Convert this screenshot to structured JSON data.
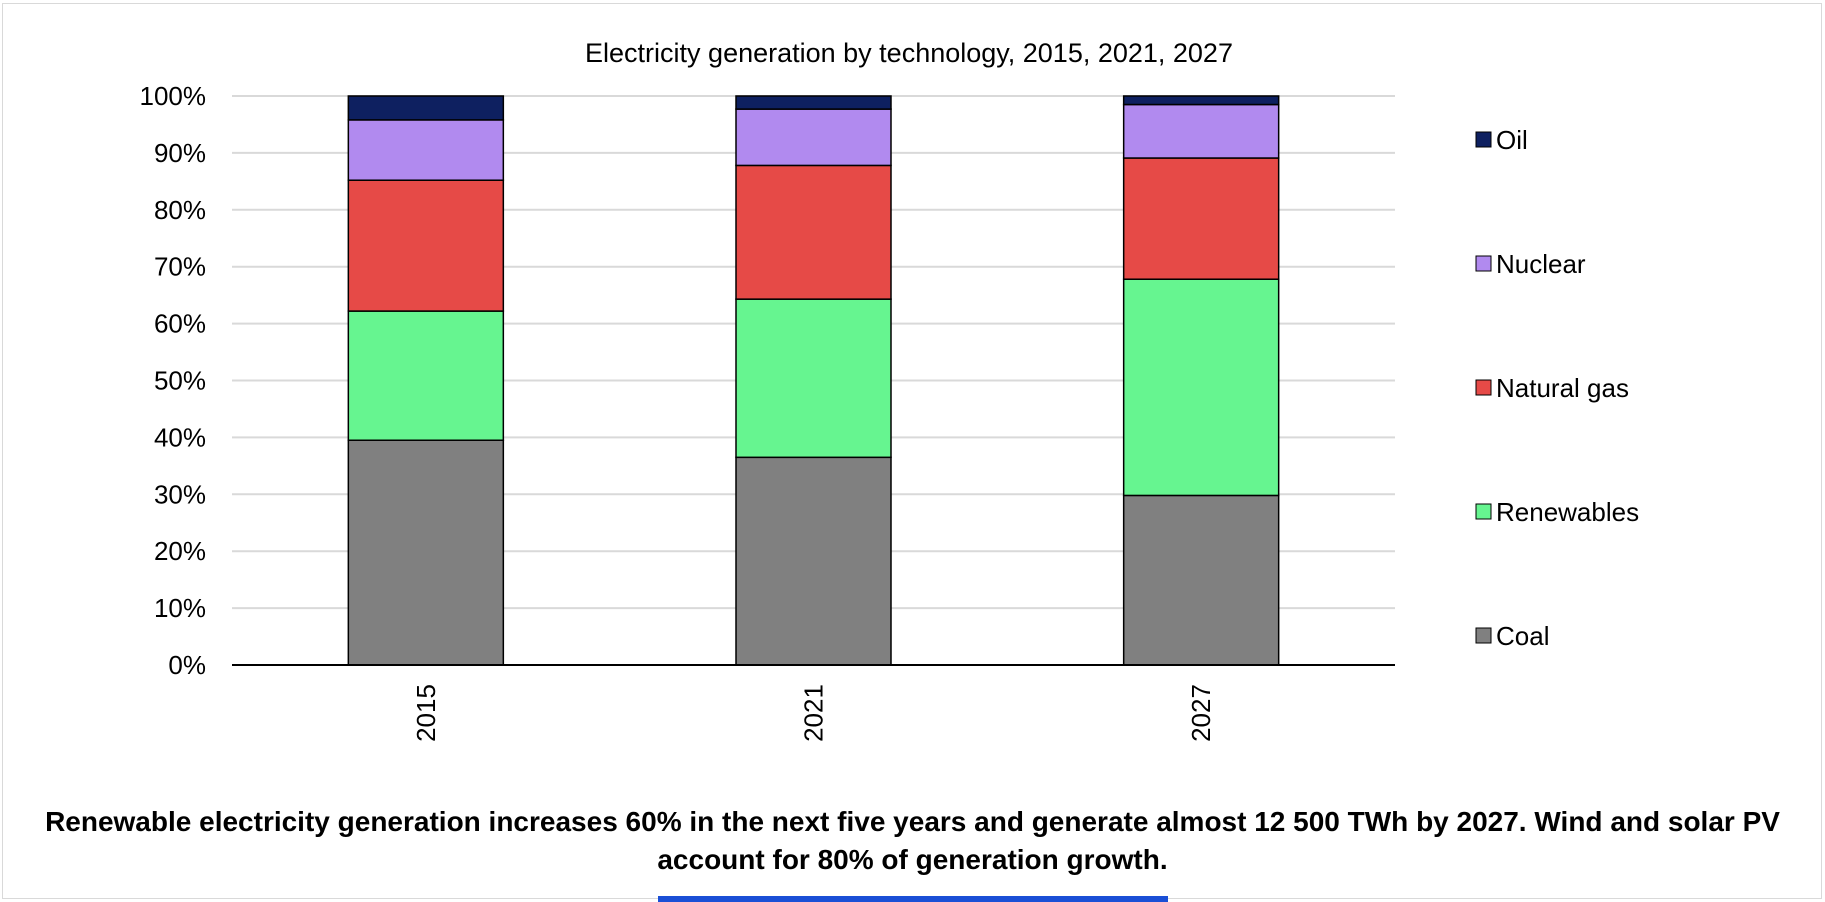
{
  "chart_data": {
    "type": "bar",
    "stacked": true,
    "title": "Electricity generation by technology, 2015, 2021, 2027",
    "categories": [
      "2015",
      "2021",
      "2027"
    ],
    "xlabel": "",
    "ylabel": "",
    "ylim": [
      0,
      100
    ],
    "yticks": [
      "0%",
      "10%",
      "20%",
      "30%",
      "40%",
      "50%",
      "60%",
      "70%",
      "80%",
      "90%",
      "100%"
    ],
    "grid": true,
    "legend_position": "right",
    "series": [
      {
        "name": "Coal",
        "color": "#808080",
        "values": [
          39.5,
          36.5,
          29.8
        ]
      },
      {
        "name": "Renewables",
        "color": "#66f590",
        "values": [
          22.7,
          27.8,
          38.0
        ]
      },
      {
        "name": "Natural gas",
        "color": "#e64a47",
        "values": [
          23.0,
          23.5,
          21.3
        ]
      },
      {
        "name": "Nuclear",
        "color": "#b18aef",
        "values": [
          10.6,
          9.9,
          9.4
        ]
      },
      {
        "name": "Oil",
        "color": "#0e2060",
        "values": [
          4.2,
          2.3,
          1.5
        ]
      }
    ],
    "legend_order": [
      "Oil",
      "Nuclear",
      "Natural gas",
      "Renewables",
      "Coal"
    ]
  },
  "caption": "Renewable electricity generation increases 60% in the next five years and generate almost 12 500 TWh by 2027. Wind and solar PV account for 80% of generation growth.",
  "colors": {
    "accent": "#1a4fd6",
    "gridline": "#d9d9d9",
    "frame": "#d9d9d9"
  }
}
